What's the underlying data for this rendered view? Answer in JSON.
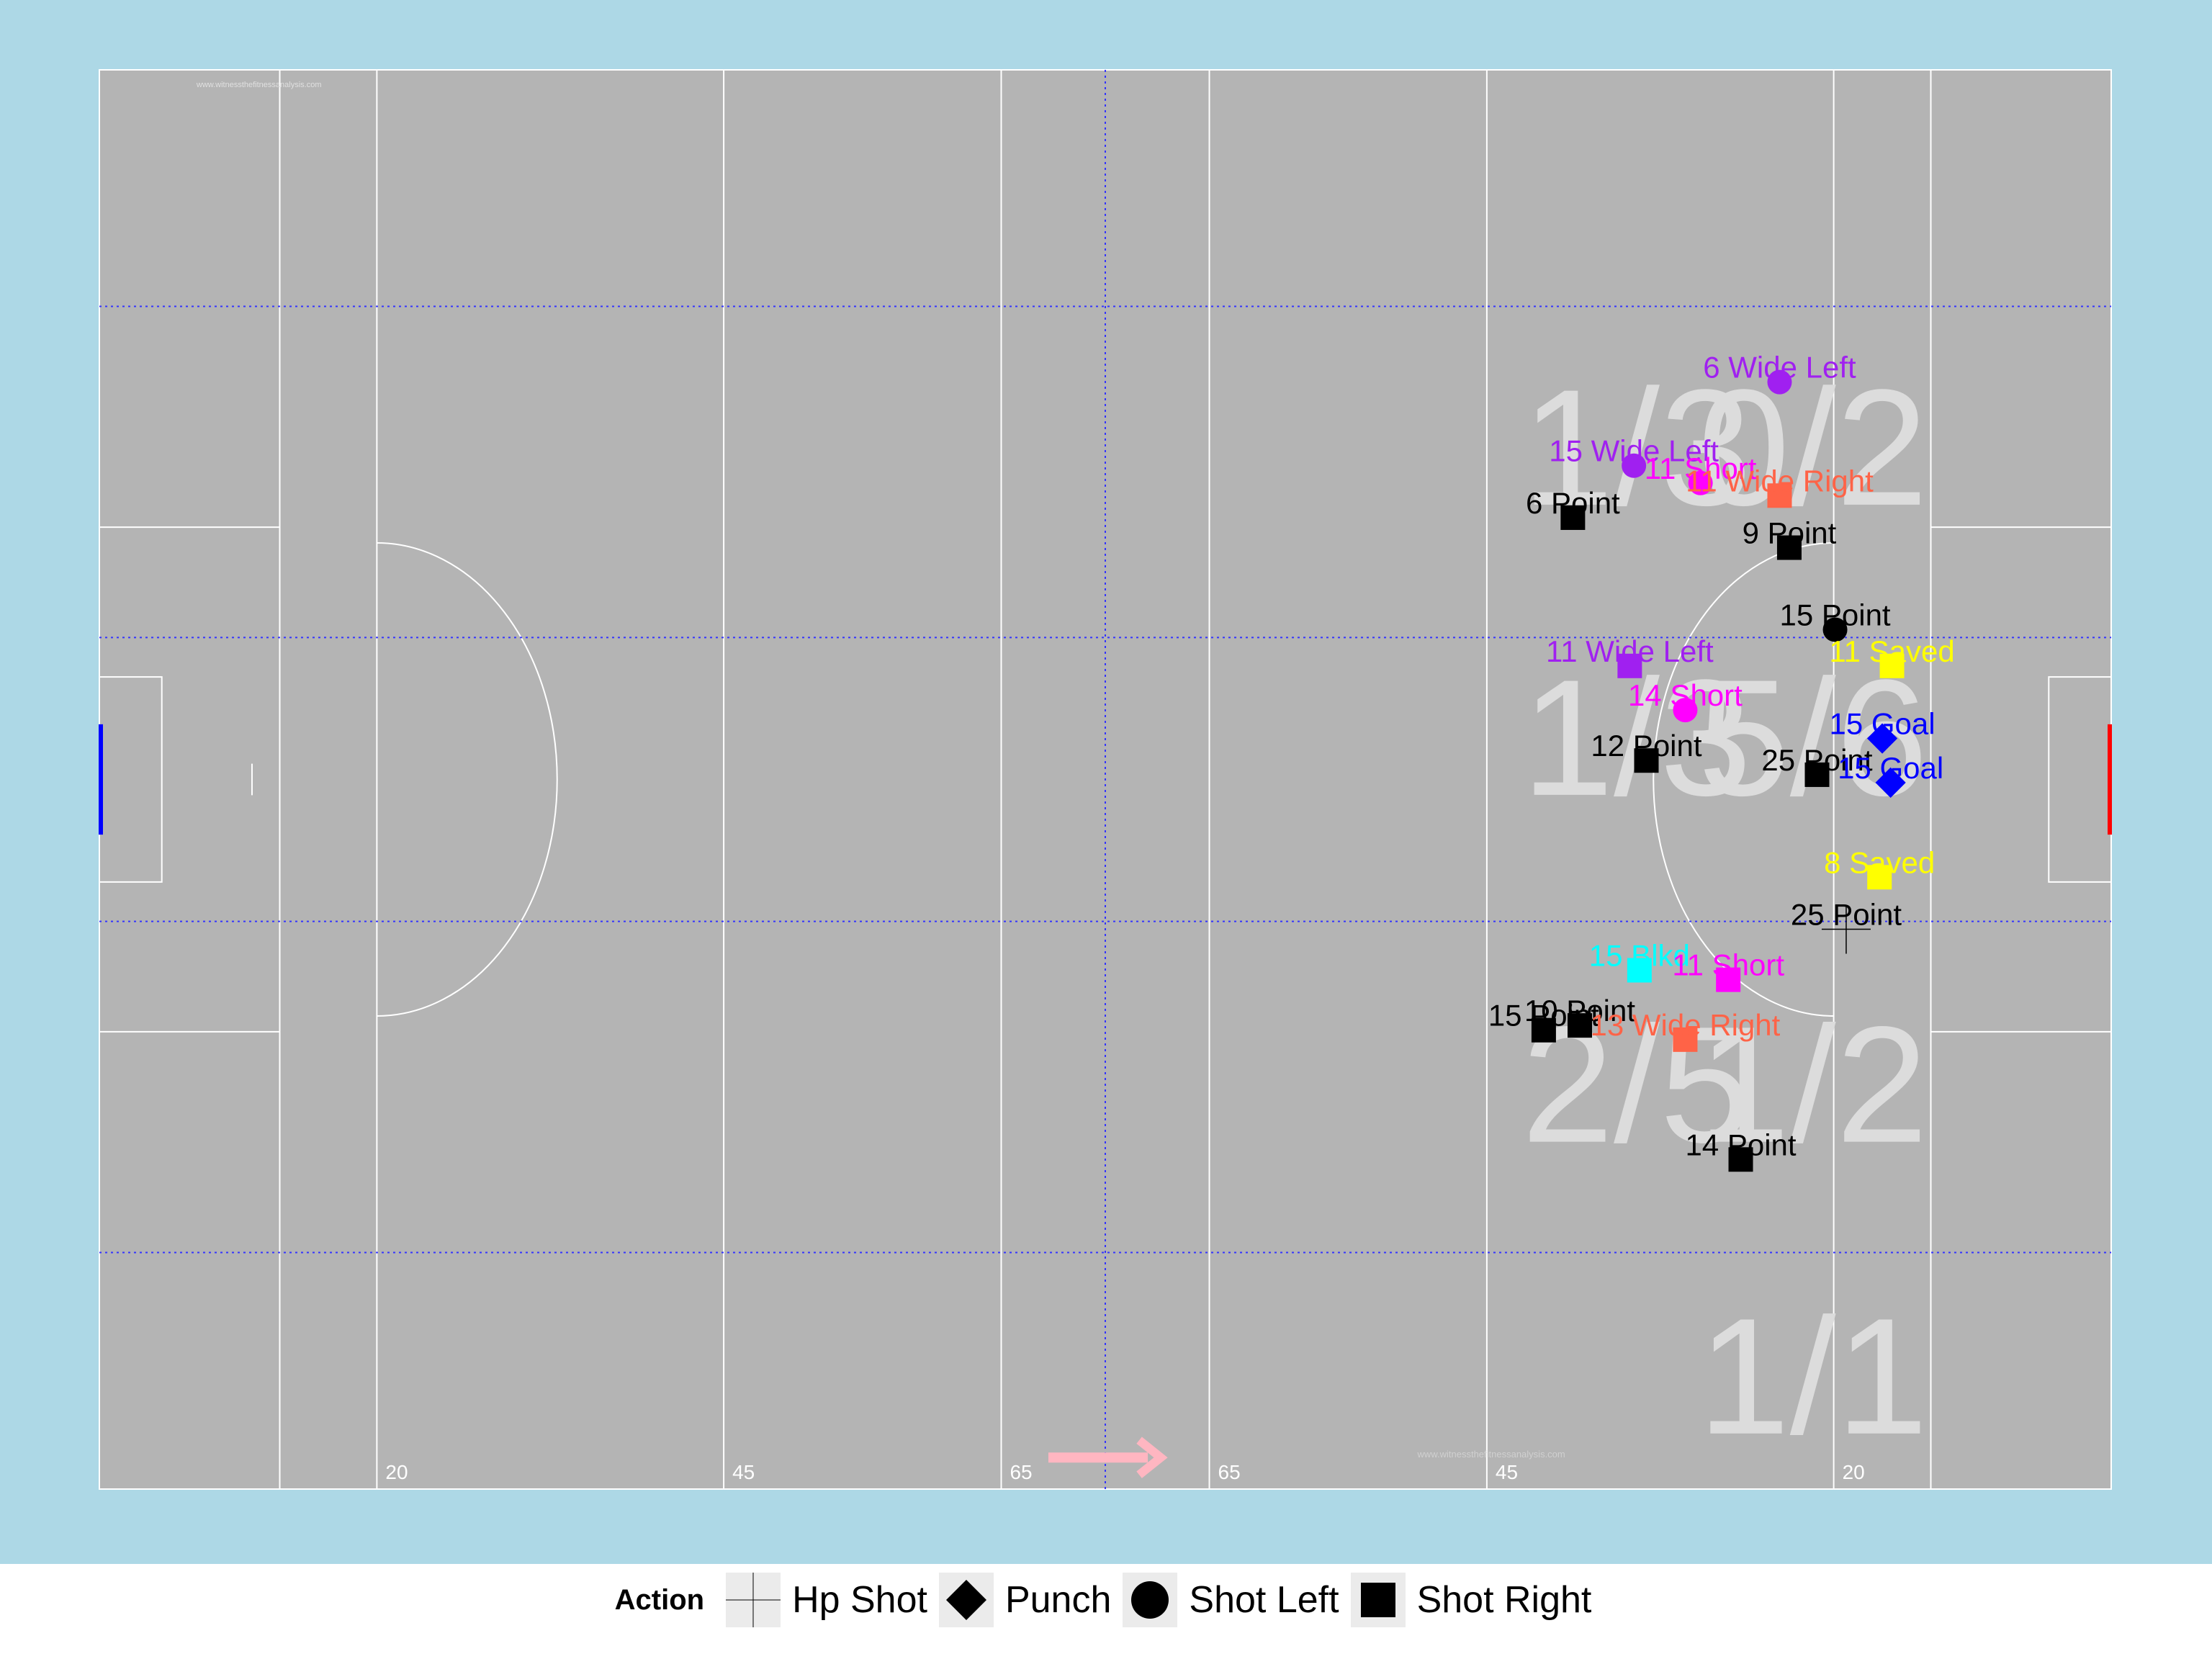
{
  "chart_data": {
    "type": "scatter",
    "pitch_labels": [
      "20",
      "45",
      "65",
      "65",
      "45",
      "20"
    ],
    "watermark": "www.witnessthefitnessanalysis.com",
    "zone_summaries": [
      {
        "id": "top-left",
        "text": "1/3"
      },
      {
        "id": "top-right",
        "text": "0/2"
      },
      {
        "id": "mid-left",
        "text": "1/3"
      },
      {
        "id": "mid-right",
        "text": "5/6"
      },
      {
        "id": "low-left",
        "text": "2/5"
      },
      {
        "id": "low-right",
        "text": "1/2"
      },
      {
        "id": "bottom-right",
        "text": "1/1"
      }
    ],
    "points": [
      {
        "label": "6 Wide Left",
        "x": 121.1,
        "y": 70.2,
        "shape": "Shot Left",
        "color": "#a020f0"
      },
      {
        "label": "15 Wide Left",
        "x": 110.6,
        "y": 64.9,
        "shape": "Shot Left",
        "color": "#a020f0"
      },
      {
        "label": "11 Short",
        "x": 115.4,
        "y": 63.8,
        "shape": "Shot Left",
        "color": "#ff00ff"
      },
      {
        "label": "11 Wide Right",
        "x": 121.1,
        "y": 63.0,
        "shape": "Shot Right",
        "color": "#ff6347"
      },
      {
        "label": "6 Point",
        "x": 106.2,
        "y": 61.6,
        "shape": "Shot Right",
        "color": "#000000"
      },
      {
        "label": "9 Point",
        "x": 121.8,
        "y": 59.7,
        "shape": "Shot Right",
        "color": "#000000"
      },
      {
        "label": "15 Point",
        "x": 125.1,
        "y": 54.5,
        "shape": "Shot Left",
        "color": "#000000"
      },
      {
        "label": "11 Wide Left",
        "x": 110.3,
        "y": 52.2,
        "shape": "Shot Right",
        "color": "#a020f0"
      },
      {
        "label": "11 Saved",
        "x": 129.2,
        "y": 52.2,
        "shape": "Shot Right",
        "color": "#ffff00"
      },
      {
        "label": "14 Short",
        "x": 114.3,
        "y": 49.4,
        "shape": "Shot Left",
        "color": "#ff00ff"
      },
      {
        "label": "15 Goal",
        "x": 128.5,
        "y": 47.6,
        "shape": "Punch",
        "color": "#0000ff"
      },
      {
        "label": "12 Point",
        "x": 111.5,
        "y": 46.2,
        "shape": "Shot Right",
        "color": "#000000"
      },
      {
        "label": "25 Point",
        "x": 123.8,
        "y": 45.3,
        "shape": "Shot Right",
        "color": "#000000"
      },
      {
        "label": "15 Goal",
        "x": 129.1,
        "y": 44.8,
        "shape": "Punch",
        "color": "#0000ff"
      },
      {
        "label": "8 Saved",
        "x": 128.3,
        "y": 38.8,
        "shape": "Shot Right",
        "color": "#ffff00"
      },
      {
        "label": "25 Point",
        "x": 125.9,
        "y": 35.5,
        "shape": "Hp Shot",
        "color": "#000000"
      },
      {
        "label": "15 Blkd",
        "x": 111.0,
        "y": 32.9,
        "shape": "Shot Right",
        "color": "#00ffff"
      },
      {
        "label": "11 Short",
        "x": 117.4,
        "y": 32.3,
        "shape": "Shot Right",
        "color": "#ff00ff"
      },
      {
        "label": "10 Point",
        "x": 106.7,
        "y": 29.4,
        "shape": "Shot Right",
        "color": "#000000"
      },
      {
        "label": "15 Point",
        "x": 104.1,
        "y": 29.1,
        "shape": "Shot Right",
        "color": "#000000"
      },
      {
        "label": "13 Wide Right",
        "x": 114.3,
        "y": 28.5,
        "shape": "Shot Right",
        "color": "#ff6347"
      },
      {
        "label": "14 Point",
        "x": 118.3,
        "y": 20.9,
        "shape": "Shot Right",
        "color": "#000000"
      }
    ],
    "legend": {
      "title": "Action",
      "entries": [
        {
          "label": "Hp Shot",
          "shape": "Hp Shot"
        },
        {
          "label": "Punch",
          "shape": "Punch"
        },
        {
          "label": "Shot Left",
          "shape": "Shot Left"
        },
        {
          "label": "Shot Right",
          "shape": "Shot Right"
        }
      ]
    },
    "xlim": [
      0,
      145
    ],
    "ylim": [
      0,
      90
    ],
    "grid": true,
    "legend_position": "bottom"
  }
}
